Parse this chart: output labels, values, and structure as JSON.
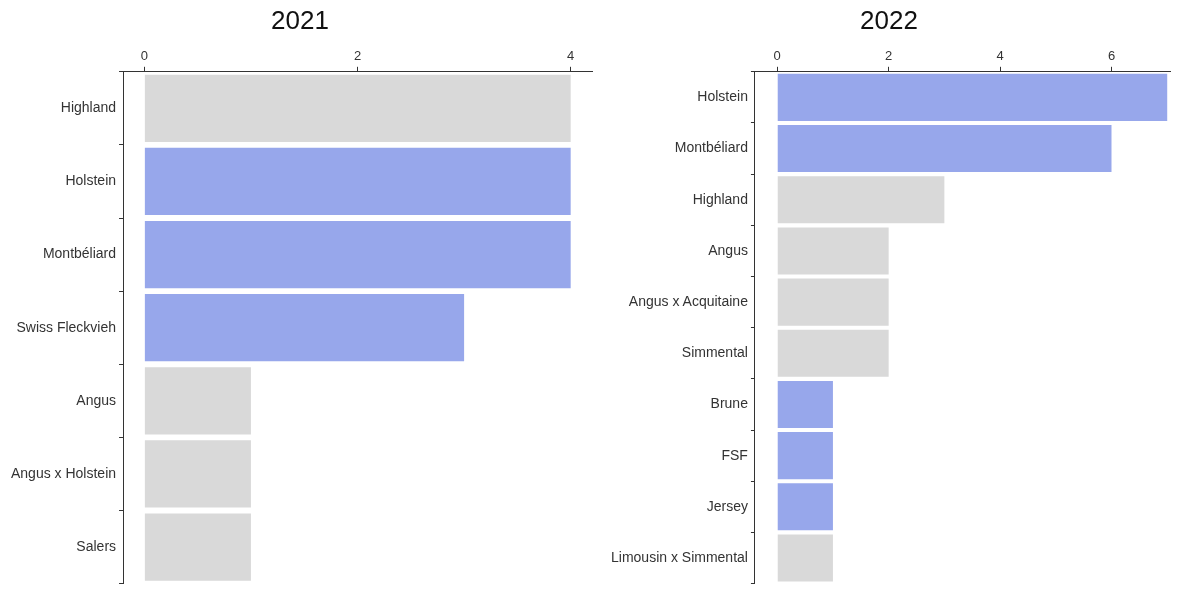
{
  "chart_data": [
    {
      "type": "bar",
      "orientation": "horizontal",
      "title": "2021",
      "categories": [
        "Highland",
        "Holstein",
        "Montbéliard",
        "Swiss Fleckvieh",
        "Angus",
        "Angus x Holstein",
        "Salers"
      ],
      "values": [
        4,
        4,
        4,
        3,
        1,
        1,
        1
      ],
      "colors": [
        "#d9d9d9",
        "#97a7eb",
        "#97a7eb",
        "#97a7eb",
        "#d9d9d9",
        "#d9d9d9",
        "#d9d9d9"
      ],
      "xlim": [
        -0.2,
        4.2
      ],
      "xticks": [
        0,
        2,
        4
      ],
      "grid": false
    },
    {
      "type": "bar",
      "orientation": "horizontal",
      "title": "2022",
      "categories": [
        "Holstein",
        "Montbéliard",
        "Highland",
        "Angus",
        "Angus x Acquitaine",
        "Simmental",
        "Brune",
        "FSF",
        "Jersey",
        "Limousin x Simmental"
      ],
      "values": [
        7,
        6,
        3,
        2,
        2,
        2,
        1,
        1,
        1,
        1
      ],
      "colors": [
        "#97a7eb",
        "#97a7eb",
        "#d9d9d9",
        "#d9d9d9",
        "#d9d9d9",
        "#d9d9d9",
        "#97a7eb",
        "#97a7eb",
        "#97a7eb",
        "#d9d9d9"
      ],
      "xlim": [
        -0.4,
        7.05
      ],
      "xticks": [
        0,
        2,
        4,
        6
      ],
      "grid": false
    }
  ]
}
